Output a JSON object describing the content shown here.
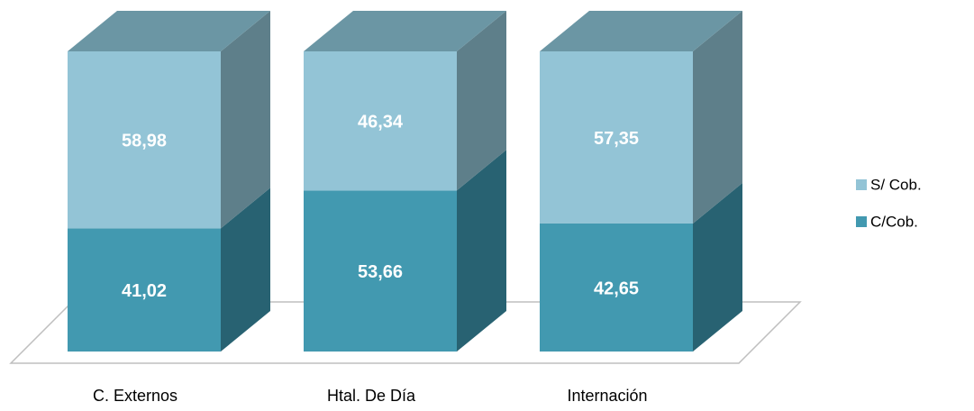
{
  "chart_data": {
    "type": "stacked-bar-3d",
    "categories": [
      "C. Externos",
      "Htal. De Día",
      "Internación"
    ],
    "series": [
      {
        "name": "C/Cob.",
        "color": "#4299b0",
        "side_color": "#286272",
        "values": [
          41.02,
          53.66,
          42.65
        ],
        "value_labels": [
          "41,02",
          "53,66",
          "42,65"
        ]
      },
      {
        "name": "S/ Cob.",
        "color": "#93c4d6",
        "side_color": "#5e7f8a",
        "top_color": "#6b96a4",
        "values": [
          58.98,
          46.34,
          57.35
        ],
        "value_labels": [
          "58,98",
          "46,34",
          "57,35"
        ]
      }
    ],
    "legend": "right"
  }
}
